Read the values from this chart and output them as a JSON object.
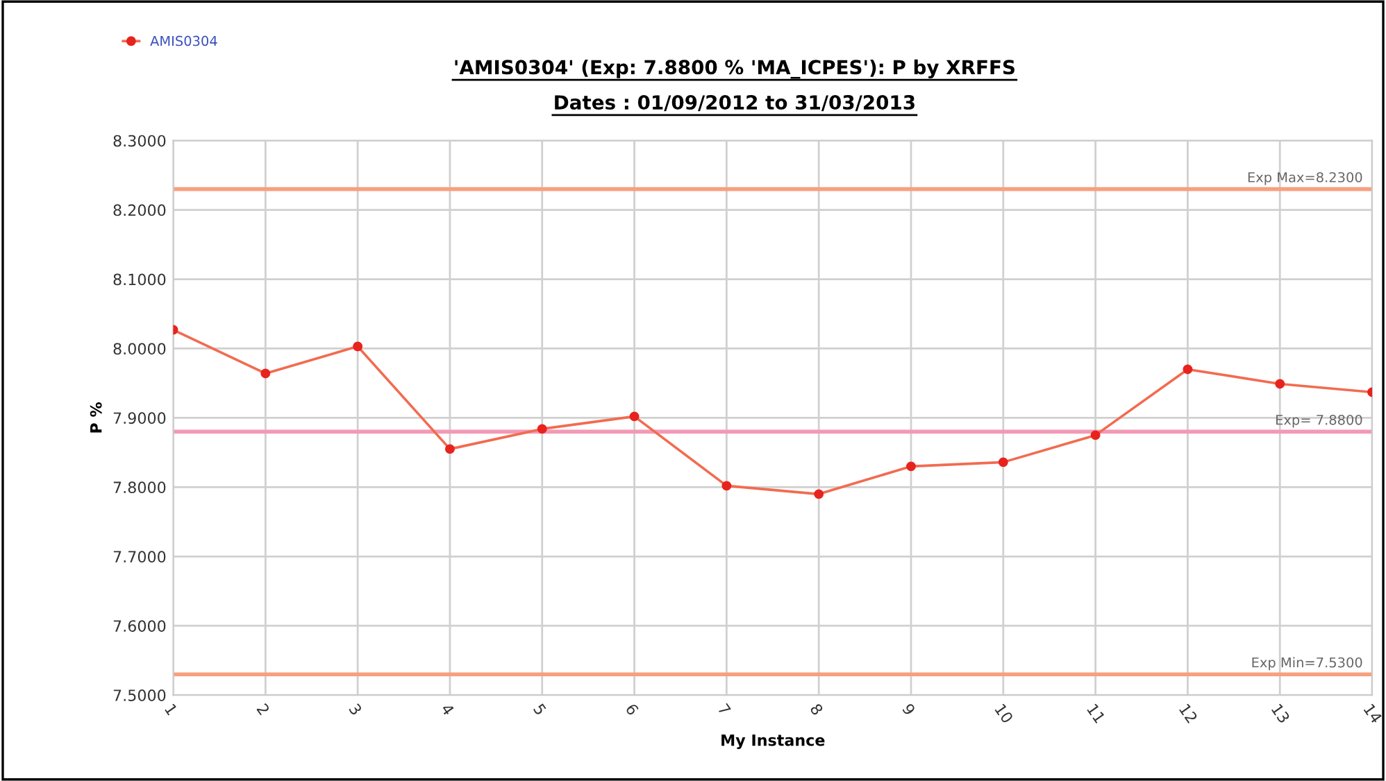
{
  "chart_data": {
    "type": "line",
    "title": "'AMIS0304' (Exp: 7.8800 % 'MA_ICPES'): P by XRFFS",
    "subtitle": "Dates : 01/09/2012 to 31/03/2013",
    "xlabel": "My Instance",
    "ylabel": "P %",
    "categories": [
      "1",
      "2",
      "3",
      "4",
      "5",
      "6",
      "7",
      "8",
      "9",
      "10",
      "11",
      "12",
      "13",
      "14"
    ],
    "series": [
      {
        "name": "AMIS0304",
        "color": "#f26b50",
        "values": [
          8.027,
          7.964,
          8.003,
          7.855,
          7.884,
          7.902,
          7.802,
          7.79,
          7.83,
          7.836,
          7.875,
          7.97,
          7.949,
          7.937
        ]
      }
    ],
    "ylim": [
      7.5,
      8.3
    ],
    "yticks": [
      {
        "value": 7.5,
        "label": "7.5000"
      },
      {
        "value": 7.6,
        "label": "7.6000"
      },
      {
        "value": 7.7,
        "label": "7.7000"
      },
      {
        "value": 7.8,
        "label": "7.8000"
      },
      {
        "value": 7.9,
        "label": "7.9000"
      },
      {
        "value": 8.0,
        "label": "8.0000"
      },
      {
        "value": 8.1,
        "label": "8.1000"
      },
      {
        "value": 8.2,
        "label": "8.2000"
      },
      {
        "value": 8.3,
        "label": "8.3000"
      }
    ],
    "ref_lines": [
      {
        "axis": "y",
        "value": 8.23,
        "label": "Exp Max=8.2300",
        "color": "#f7a07f"
      },
      {
        "axis": "y",
        "value": 7.88,
        "label": "Exp= 7.8800",
        "color": "#f29ab5"
      },
      {
        "axis": "y",
        "value": 7.53,
        "label": "Exp Min=7.5300",
        "color": "#f7a07f"
      }
    ],
    "grid": true,
    "legend": "top left",
    "marker": "circle",
    "line_style": "solid"
  }
}
